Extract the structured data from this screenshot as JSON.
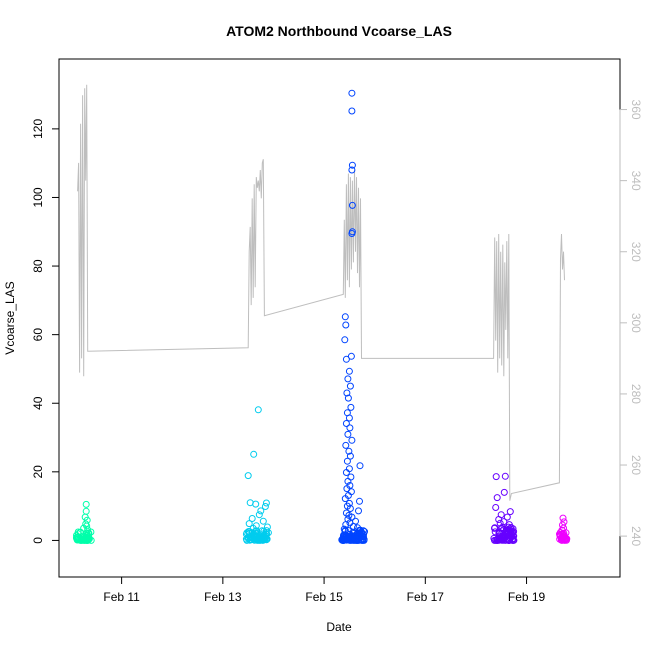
{
  "chart_data": {
    "type": "scatter",
    "title": "ATOM2 Northbound Vcoarse_LAS",
    "xlabel": "Date",
    "ylabel": "Vcoarse_LAS",
    "ylabel_right": "",
    "x_unit": "days in February",
    "xlim": [
      10.0,
      20.55
    ],
    "ylim": [
      -6,
      136
    ],
    "ylim_right": [
      233,
      370
    ],
    "x_ticks": [
      {
        "value": 11,
        "label": "Feb 11"
      },
      {
        "value": 13,
        "label": "Feb 13"
      },
      {
        "value": 15,
        "label": "Feb 15"
      },
      {
        "value": 17,
        "label": "Feb 17"
      },
      {
        "value": 19,
        "label": "Feb 19"
      }
    ],
    "y_ticks_left": [
      0,
      20,
      40,
      60,
      80,
      100,
      120
    ],
    "y_ticks_right": [
      240,
      260,
      280,
      300,
      320,
      340,
      360
    ],
    "grid": false,
    "legend": "none",
    "colors": {
      "line": "#bebebe",
      "right_axis": "#bebebe",
      "cluster_1": "#00ffaa",
      "cluster_2": "#00ccee",
      "cluster_3": "#0044ff",
      "cluster_4": "#6600ff",
      "cluster_5": "#ee00ff"
    },
    "series": [
      {
        "type": "points",
        "color": "#00ffaa",
        "x_range": [
          10.1,
          10.4
        ],
        "baseline_count": 50,
        "baseline_max": 2.5,
        "outliers": [
          {
            "x": 10.3,
            "y": 10.5
          },
          {
            "x": 10.3,
            "y": 8.5
          },
          {
            "x": 10.28,
            "y": 6.8
          },
          {
            "x": 10.32,
            "y": 5.9
          },
          {
            "x": 10.29,
            "y": 4.8
          },
          {
            "x": 10.31,
            "y": 4.2
          },
          {
            "x": 10.25,
            "y": 3.6
          },
          {
            "x": 10.33,
            "y": 3.1
          }
        ]
      },
      {
        "type": "points",
        "color": "#00ccee",
        "x_range": [
          13.45,
          13.9
        ],
        "baseline_count": 70,
        "baseline_max": 3.0,
        "outliers": [
          {
            "x": 13.7,
            "y": 38.1
          },
          {
            "x": 13.61,
            "y": 25.1
          },
          {
            "x": 13.5,
            "y": 18.9
          },
          {
            "x": 13.54,
            "y": 11.0
          },
          {
            "x": 13.65,
            "y": 10.6
          },
          {
            "x": 13.86,
            "y": 10.9
          },
          {
            "x": 13.84,
            "y": 9.9
          },
          {
            "x": 13.75,
            "y": 8.6
          },
          {
            "x": 13.72,
            "y": 7.5
          },
          {
            "x": 13.58,
            "y": 6.4
          },
          {
            "x": 13.8,
            "y": 5.6
          },
          {
            "x": 13.52,
            "y": 4.9
          },
          {
            "x": 13.66,
            "y": 4.3
          },
          {
            "x": 13.88,
            "y": 3.9
          },
          {
            "x": 13.6,
            "y": 3.5
          }
        ]
      },
      {
        "type": "points",
        "color": "#0044ff",
        "x_range": [
          15.35,
          15.8
        ],
        "baseline_count": 100,
        "baseline_max": 3.0,
        "outliers": [
          {
            "x": 15.55,
            "y": 130.4
          },
          {
            "x": 15.55,
            "y": 125.2
          },
          {
            "x": 15.56,
            "y": 109.4
          },
          {
            "x": 15.55,
            "y": 108.0
          },
          {
            "x": 15.56,
            "y": 97.7
          },
          {
            "x": 15.56,
            "y": 90.0
          },
          {
            "x": 15.55,
            "y": 89.5
          },
          {
            "x": 15.42,
            "y": 65.2
          },
          {
            "x": 15.43,
            "y": 62.8
          },
          {
            "x": 15.41,
            "y": 58.5
          },
          {
            "x": 15.54,
            "y": 53.7
          },
          {
            "x": 15.44,
            "y": 52.8
          },
          {
            "x": 15.5,
            "y": 49.3
          },
          {
            "x": 15.47,
            "y": 47.1
          },
          {
            "x": 15.52,
            "y": 45.0
          },
          {
            "x": 15.45,
            "y": 43.0
          },
          {
            "x": 15.48,
            "y": 41.5
          },
          {
            "x": 15.53,
            "y": 38.8
          },
          {
            "x": 15.46,
            "y": 37.2
          },
          {
            "x": 15.5,
            "y": 35.7
          },
          {
            "x": 15.44,
            "y": 34.1
          },
          {
            "x": 15.51,
            "y": 32.8
          },
          {
            "x": 15.47,
            "y": 30.9
          },
          {
            "x": 15.55,
            "y": 29.2
          },
          {
            "x": 15.43,
            "y": 27.7
          },
          {
            "x": 15.49,
            "y": 26.0
          },
          {
            "x": 15.52,
            "y": 24.6
          },
          {
            "x": 15.46,
            "y": 23.1
          },
          {
            "x": 15.71,
            "y": 21.8
          },
          {
            "x": 15.5,
            "y": 20.9
          },
          {
            "x": 15.44,
            "y": 19.8
          },
          {
            "x": 15.53,
            "y": 18.5
          },
          {
            "x": 15.47,
            "y": 17.2
          },
          {
            "x": 15.51,
            "y": 16.0
          },
          {
            "x": 15.45,
            "y": 15.1
          },
          {
            "x": 15.54,
            "y": 14.2
          },
          {
            "x": 15.48,
            "y": 13.1
          },
          {
            "x": 15.42,
            "y": 12.2
          },
          {
            "x": 15.7,
            "y": 11.4
          },
          {
            "x": 15.5,
            "y": 10.8
          },
          {
            "x": 15.46,
            "y": 10.0
          },
          {
            "x": 15.52,
            "y": 9.3
          },
          {
            "x": 15.68,
            "y": 8.6
          },
          {
            "x": 15.44,
            "y": 8.0
          },
          {
            "x": 15.49,
            "y": 7.3
          },
          {
            "x": 15.55,
            "y": 6.8
          },
          {
            "x": 15.47,
            "y": 6.2
          },
          {
            "x": 15.62,
            "y": 5.6
          },
          {
            "x": 15.51,
            "y": 5.1
          },
          {
            "x": 15.43,
            "y": 4.6
          },
          {
            "x": 15.58,
            "y": 4.1
          },
          {
            "x": 15.66,
            "y": 3.7
          },
          {
            "x": 15.4,
            "y": 3.3
          }
        ]
      },
      {
        "type": "points",
        "color": "#6600ff",
        "x_range": [
          18.35,
          18.75
        ],
        "baseline_count": 80,
        "baseline_max": 4.0,
        "outliers": [
          {
            "x": 18.4,
            "y": 18.6
          },
          {
            "x": 18.58,
            "y": 18.7
          },
          {
            "x": 18.56,
            "y": 14.0
          },
          {
            "x": 18.42,
            "y": 12.5
          },
          {
            "x": 18.39,
            "y": 9.6
          },
          {
            "x": 18.68,
            "y": 8.4
          },
          {
            "x": 18.5,
            "y": 7.5
          },
          {
            "x": 18.62,
            "y": 6.8
          },
          {
            "x": 18.45,
            "y": 6.1
          },
          {
            "x": 18.55,
            "y": 5.5
          },
          {
            "x": 18.48,
            "y": 5.0
          },
          {
            "x": 18.66,
            "y": 4.6
          }
        ]
      },
      {
        "type": "points",
        "color": "#ee00ff",
        "x_range": [
          19.65,
          19.8
        ],
        "baseline_count": 30,
        "baseline_max": 2.5,
        "outliers": [
          {
            "x": 19.72,
            "y": 6.5
          },
          {
            "x": 19.74,
            "y": 5.4
          },
          {
            "x": 19.71,
            "y": 4.5
          },
          {
            "x": 19.73,
            "y": 3.6
          },
          {
            "x": 19.7,
            "y": 3.0
          }
        ]
      },
      {
        "type": "line",
        "axis": "right",
        "color": "#bebebe",
        "points": [
          {
            "x": 10.13,
            "y": 337
          },
          {
            "x": 10.15,
            "y": 345
          },
          {
            "x": 10.17,
            "y": 286
          },
          {
            "x": 10.19,
            "y": 356
          },
          {
            "x": 10.21,
            "y": 290
          },
          {
            "x": 10.23,
            "y": 364
          },
          {
            "x": 10.25,
            "y": 285
          },
          {
            "x": 10.27,
            "y": 366
          },
          {
            "x": 10.29,
            "y": 340
          },
          {
            "x": 10.31,
            "y": 367
          },
          {
            "x": 10.33,
            "y": 292
          },
          {
            "x": 13.5,
            "y": 293
          },
          {
            "x": 13.52,
            "y": 320
          },
          {
            "x": 13.54,
            "y": 327
          },
          {
            "x": 13.56,
            "y": 305
          },
          {
            "x": 13.58,
            "y": 335
          },
          {
            "x": 13.6,
            "y": 307
          },
          {
            "x": 13.62,
            "y": 339
          },
          {
            "x": 13.64,
            "y": 310
          },
          {
            "x": 13.66,
            "y": 341
          },
          {
            "x": 13.68,
            "y": 338
          },
          {
            "x": 13.7,
            "y": 340
          },
          {
            "x": 13.72,
            "y": 337
          },
          {
            "x": 13.74,
            "y": 343
          },
          {
            "x": 13.76,
            "y": 335
          },
          {
            "x": 13.78,
            "y": 345
          },
          {
            "x": 13.8,
            "y": 346
          },
          {
            "x": 13.82,
            "y": 302
          },
          {
            "x": 15.38,
            "y": 308
          },
          {
            "x": 15.4,
            "y": 329
          },
          {
            "x": 15.42,
            "y": 307
          },
          {
            "x": 15.44,
            "y": 339
          },
          {
            "x": 15.46,
            "y": 312
          },
          {
            "x": 15.48,
            "y": 342
          },
          {
            "x": 15.5,
            "y": 310
          },
          {
            "x": 15.52,
            "y": 341
          },
          {
            "x": 15.54,
            "y": 315
          },
          {
            "x": 15.56,
            "y": 340
          },
          {
            "x": 15.58,
            "y": 317
          },
          {
            "x": 15.6,
            "y": 343
          },
          {
            "x": 15.62,
            "y": 320
          },
          {
            "x": 15.64,
            "y": 341
          },
          {
            "x": 15.66,
            "y": 314
          },
          {
            "x": 15.68,
            "y": 338
          },
          {
            "x": 15.7,
            "y": 310
          },
          {
            "x": 15.72,
            "y": 335
          },
          {
            "x": 15.74,
            "y": 290
          },
          {
            "x": 18.35,
            "y": 290
          },
          {
            "x": 18.37,
            "y": 324
          },
          {
            "x": 18.39,
            "y": 295
          },
          {
            "x": 18.41,
            "y": 323
          },
          {
            "x": 18.43,
            "y": 286
          },
          {
            "x": 18.45,
            "y": 325
          },
          {
            "x": 18.47,
            "y": 290
          },
          {
            "x": 18.49,
            "y": 320
          },
          {
            "x": 18.51,
            "y": 288
          },
          {
            "x": 18.53,
            "y": 322
          },
          {
            "x": 18.55,
            "y": 285
          },
          {
            "x": 18.57,
            "y": 317
          },
          {
            "x": 18.59,
            "y": 298
          },
          {
            "x": 18.61,
            "y": 323
          },
          {
            "x": 18.63,
            "y": 290
          },
          {
            "x": 18.65,
            "y": 325
          },
          {
            "x": 18.67,
            "y": 250
          },
          {
            "x": 18.7,
            "y": 252
          },
          {
            "x": 19.65,
            "y": 255
          },
          {
            "x": 19.67,
            "y": 318
          },
          {
            "x": 19.69,
            "y": 325
          },
          {
            "x": 19.71,
            "y": 315
          },
          {
            "x": 19.73,
            "y": 320
          },
          {
            "x": 19.75,
            "y": 312
          }
        ]
      }
    ]
  }
}
